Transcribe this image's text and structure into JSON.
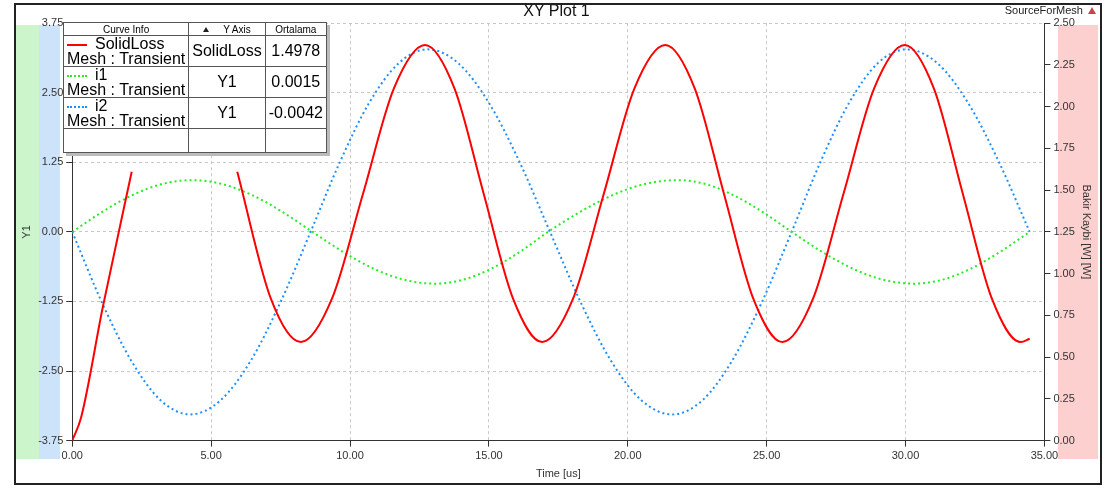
{
  "chart_data": {
    "type": "line",
    "title": "XY Plot 1",
    "xlabel": "Time [us]",
    "ylabel": "Y1",
    "y2label": "Bakir Kaybi [W] [W]",
    "xlim": [
      0,
      35
    ],
    "xticks": [
      {
        "value": 0,
        "label": "0.00"
      },
      {
        "value": 5,
        "label": "5.00"
      },
      {
        "value": 10,
        "label": "10.00"
      },
      {
        "value": 15,
        "label": "15.00"
      },
      {
        "value": 20,
        "label": "20.00"
      },
      {
        "value": 25,
        "label": "25.00"
      },
      {
        "value": 30,
        "label": "30.00"
      },
      {
        "value": 35,
        "label": "35.00"
      }
    ],
    "ylim": [
      -3.75,
      3.75
    ],
    "yticks": [
      -3.75,
      {
        "value": -2.5,
        "label": "-2.50"
      },
      -1.25,
      {
        "value": 0,
        "label": "0.00"
      },
      1.25,
      {
        "value": 2.5,
        "label": "2.50"
      },
      3.75
    ],
    "y2lim": [
      0,
      2.5
    ],
    "y2ticks": [
      {
        "value": 0,
        "label": "0.00"
      },
      0.25,
      {
        "value": 0.5,
        "label": "0.50"
      },
      0.75,
      {
        "value": 1,
        "label": "1.00"
      },
      1.25,
      {
        "value": 1.5,
        "label": "1.50"
      },
      1.75,
      {
        "value": 2,
        "label": "2.00"
      },
      2.25,
      {
        "value": 2.5,
        "label": "2.50"
      }
    ],
    "grid": true,
    "legend": "top left",
    "series": [
      {
        "name": "SolidLoss",
        "color": "#ff0000",
        "axis": "y2",
        "line_style": "solid",
        "x": [
          0,
          0.32,
          1.1,
          2.14,
          3,
          4,
          5,
          5.94,
          7.15,
          8.23,
          9.35,
          10.47,
          11.58,
          12.7,
          13.76,
          14.81,
          15.87,
          16.92,
          18.03,
          19.14,
          20.24,
          21.35,
          22.41,
          23.46,
          24.52,
          25.57,
          26.67,
          27.77,
          28.87,
          29.97,
          31.02,
          32.06,
          33.11,
          34.15,
          34.47
        ],
        "values": [
          0,
          0.14,
          0.8,
          1.61,
          null,
          null,
          null,
          1.61,
          0.85,
          0.59,
          0.85,
          1.48,
          2.11,
          2.37,
          2.11,
          1.48,
          0.85,
          0.59,
          0.85,
          1.48,
          2.11,
          2.37,
          2.11,
          1.48,
          0.85,
          0.59,
          0.85,
          1.48,
          2.11,
          2.37,
          2.11,
          1.48,
          0.85,
          0.59,
          0.61
        ]
      },
      {
        "name": "i1",
        "color": "#22ee22",
        "line_style": "dotted",
        "x": [
          0,
          1.08,
          2.16,
          3.23,
          4.3,
          5.39,
          6.48,
          7.56,
          8.65,
          9.75,
          10.85,
          11.95,
          13.05,
          14.07,
          15.09,
          16.11,
          17.13,
          18.29,
          19.45,
          20.61,
          21.77,
          22.8,
          23.8,
          24.85,
          25.9,
          27,
          28.1,
          29.2,
          30.3,
          31.32,
          32.35,
          33.4,
          34.47
        ],
        "values": [
          0,
          0.36,
          0.66,
          0.86,
          0.93,
          0.86,
          0.66,
          0.36,
          0,
          -0.36,
          -0.66,
          -0.86,
          -0.93,
          -0.86,
          -0.66,
          -0.36,
          0,
          0.36,
          0.66,
          0.86,
          0.93,
          0.86,
          0.66,
          0.36,
          0,
          -0.36,
          -0.66,
          -0.86,
          -0.93,
          -0.86,
          -0.66,
          -0.36,
          0
        ]
      },
      {
        "name": "i2",
        "color": "#1e8fff",
        "line_style": "dotted",
        "x": [
          0,
          1.06,
          2.13,
          3.19,
          4.25,
          5.33,
          6.42,
          7.5,
          8.58,
          9.64,
          10.69,
          11.75,
          12.8,
          13.9,
          15,
          16.1,
          17.2,
          18.3,
          19.4,
          20.5,
          21.6,
          22.68,
          23.75,
          24.83,
          25.9,
          26.94,
          27.97,
          29,
          30.04,
          31.15,
          32.25,
          33.36,
          34.47
        ],
        "values": [
          0,
          -1.26,
          -2.32,
          -3.03,
          -3.28,
          -3.03,
          -2.32,
          -1.26,
          0,
          1.26,
          2.32,
          3.03,
          3.28,
          3.03,
          2.32,
          1.26,
          0,
          -1.26,
          -2.32,
          -3.03,
          -3.28,
          -3.03,
          -2.32,
          -1.26,
          0,
          1.26,
          2.32,
          3.03,
          3.28,
          3.03,
          2.32,
          1.26,
          0
        ]
      }
    ],
    "annotations": [
      "Curve Info",
      "Y Axis",
      "Ortalama",
      "Mesh : Transient",
      "SolidLoss",
      "1.4978",
      "Mesh : Transient",
      "Y1",
      "0.0015",
      "Mesh : Transient",
      "Y1",
      "-0.0042",
      "SourceForMesh"
    ]
  }
}
